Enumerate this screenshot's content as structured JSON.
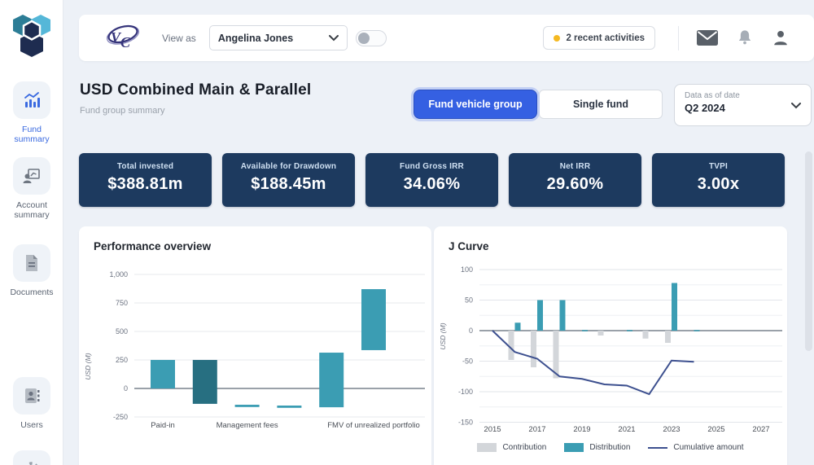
{
  "topbar": {
    "view_as_label": "View as",
    "view_as_value": "Angelina Jones",
    "activities_badge": "2 recent activities"
  },
  "sidebar": {
    "items": [
      {
        "label": "Fund summary",
        "active": true
      },
      {
        "label": "Account summary",
        "active": false
      },
      {
        "label": "Documents",
        "active": false
      },
      {
        "label": "Users",
        "active": false
      }
    ]
  },
  "header": {
    "title": "USD Combined Main & Parallel",
    "subtitle": "Fund group summary",
    "view_toggle": {
      "options": [
        "Fund vehicle group",
        "Single fund"
      ],
      "selected": "Fund vehicle group"
    },
    "date_filter": {
      "label": "Data as of date",
      "value": "Q2 2024"
    }
  },
  "kpis": [
    {
      "label": "Total invested",
      "value": "$388.81m"
    },
    {
      "label": "Available for Drawdown",
      "value": "$188.45m"
    },
    {
      "label": "Fund Gross IRR",
      "value": "34.06%"
    },
    {
      "label": "Net IRR",
      "value": "29.60%"
    },
    {
      "label": "TVPI",
      "value": "3.00x"
    }
  ],
  "colors": {
    "primary_blue": "#3560e2",
    "kpi_navy": "#1d3a5f",
    "teal": "#3b9db3",
    "dark_teal": "#276f81",
    "contribution_gray": "#d3d6da",
    "cumulative_navy": "#3d508f",
    "activity_dot": "#f5b921"
  },
  "chart_data": [
    {
      "type": "bar",
      "variant": "waterfall",
      "title": "Performance overview",
      "ylabel": "USD (M)",
      "ylim": [
        -250,
        1000
      ],
      "yticks": [
        1000,
        750,
        500,
        250,
        0,
        -250
      ],
      "grid": true,
      "bars": [
        {
          "category": "Paid-in",
          "from": 0,
          "to": 250,
          "color": "#3b9db3"
        },
        {
          "category": "",
          "from": 250,
          "to": -135,
          "color": "#276f81"
        },
        {
          "category": "Management fees",
          "from": -143,
          "to": -163,
          "color": "#3b9db3"
        },
        {
          "category": "",
          "from": -150,
          "to": -170,
          "color": "#3b9db3"
        },
        {
          "category": "",
          "from": -165,
          "to": 314,
          "color": "#3b9db3"
        },
        {
          "category": "FMV of unrealized portfolio",
          "from": 336,
          "to": 871,
          "color": "#3b9db3"
        }
      ]
    },
    {
      "type": "line",
      "variant": "jcurve",
      "title": "J Curve",
      "ylabel": "USD (M)",
      "ylim": [
        -150,
        100
      ],
      "yticks": [
        100,
        50,
        0,
        -50,
        -100,
        -150
      ],
      "minor_grid_step": 25,
      "xticks": [
        2015,
        2017,
        2019,
        2021,
        2023,
        2025,
        2027
      ],
      "legend_position": "bottom",
      "series": [
        {
          "name": "Contribution",
          "type": "bar",
          "color": "#d3d6da",
          "points": [
            [
              2016,
              -48
            ],
            [
              2017,
              -60
            ],
            [
              2018,
              -78
            ],
            [
              2020,
              -8
            ],
            [
              2022,
              -13
            ],
            [
              2023,
              -20
            ]
          ]
        },
        {
          "name": "Distribution",
          "type": "bar",
          "color": "#3b9db3",
          "points": [
            [
              2016,
              13
            ],
            [
              2017,
              50
            ],
            [
              2018,
              50
            ],
            [
              2019,
              1
            ],
            [
              2021,
              1
            ],
            [
              2023,
              78
            ],
            [
              2024,
              1
            ]
          ]
        },
        {
          "name": "Cumulative amount",
          "type": "line",
          "color": "#3d508f",
          "points": [
            [
              2015,
              0
            ],
            [
              2016,
              -35
            ],
            [
              2017,
              -46
            ],
            [
              2018,
              -75
            ],
            [
              2019,
              -79
            ],
            [
              2020,
              -88
            ],
            [
              2021,
              -90
            ],
            [
              2022,
              -104
            ],
            [
              2023,
              -49
            ],
            [
              2024,
              -51
            ]
          ]
        }
      ]
    }
  ]
}
